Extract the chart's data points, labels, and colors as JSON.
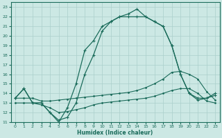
{
  "xlabel": "Humidex (Indice chaleur)",
  "xlim": [
    -0.5,
    23.5
  ],
  "ylim": [
    11,
    23.5
  ],
  "yticks": [
    11,
    12,
    13,
    14,
    15,
    16,
    17,
    18,
    19,
    20,
    21,
    22,
    23
  ],
  "xticks": [
    0,
    1,
    2,
    3,
    4,
    5,
    6,
    7,
    8,
    9,
    10,
    11,
    12,
    13,
    14,
    15,
    16,
    17,
    18,
    19,
    20,
    21,
    22,
    23
  ],
  "bg_color": "#cce8e4",
  "grid_color": "#aacfcb",
  "line_color": "#1a6b5a",
  "line1_flat_top": {
    "x": [
      0,
      1,
      2,
      3,
      4,
      5,
      6,
      7,
      8,
      9,
      10,
      11,
      12,
      13,
      14,
      15,
      16,
      17,
      18,
      19,
      20,
      21,
      22,
      23
    ],
    "y": [
      13.5,
      13.5,
      13.5,
      13.2,
      13.2,
      13.3,
      13.4,
      13.5,
      13.6,
      13.7,
      13.8,
      13.9,
      14.0,
      14.1,
      14.3,
      14.6,
      15.0,
      15.5,
      16.2,
      16.3,
      16.0,
      15.5,
      14.2,
      13.3
    ]
  },
  "line2_flat_bottom": {
    "x": [
      0,
      1,
      2,
      3,
      4,
      5,
      6,
      7,
      8,
      9,
      10,
      11,
      12,
      13,
      14,
      15,
      16,
      17,
      18,
      19,
      20,
      21,
      22,
      23
    ],
    "y": [
      13.0,
      13.0,
      13.0,
      12.8,
      12.5,
      12.0,
      12.1,
      12.3,
      12.5,
      12.8,
      13.0,
      13.1,
      13.2,
      13.3,
      13.4,
      13.5,
      13.7,
      14.0,
      14.3,
      14.5,
      14.5,
      14.0,
      13.2,
      13.0
    ]
  },
  "line3_curve": {
    "x": [
      0,
      1,
      2,
      3,
      4,
      5,
      6,
      7,
      8,
      9,
      10,
      11,
      12,
      13,
      14,
      15,
      16,
      17,
      18,
      19,
      20,
      21,
      22,
      23
    ],
    "y": [
      13.5,
      14.5,
      13.0,
      13.0,
      12.0,
      11.2,
      11.5,
      13.0,
      16.0,
      18.0,
      20.5,
      21.5,
      22.0,
      22.0,
      22.0,
      22.0,
      21.5,
      21.0,
      19.0,
      16.0,
      14.0,
      13.5,
      13.5,
      13.8
    ]
  },
  "line4_curve_peak": {
    "x": [
      0,
      1,
      2,
      3,
      4,
      5,
      6,
      7,
      8,
      9,
      10,
      11,
      12,
      13,
      14,
      15,
      16,
      17,
      18,
      19,
      20,
      21,
      22,
      23
    ],
    "y": [
      13.5,
      14.5,
      13.0,
      13.0,
      12.0,
      11.0,
      12.5,
      15.0,
      18.5,
      19.5,
      21.0,
      21.5,
      22.0,
      22.3,
      22.8,
      22.0,
      21.5,
      21.0,
      19.0,
      16.0,
      14.0,
      13.3,
      13.5,
      14.0
    ]
  }
}
